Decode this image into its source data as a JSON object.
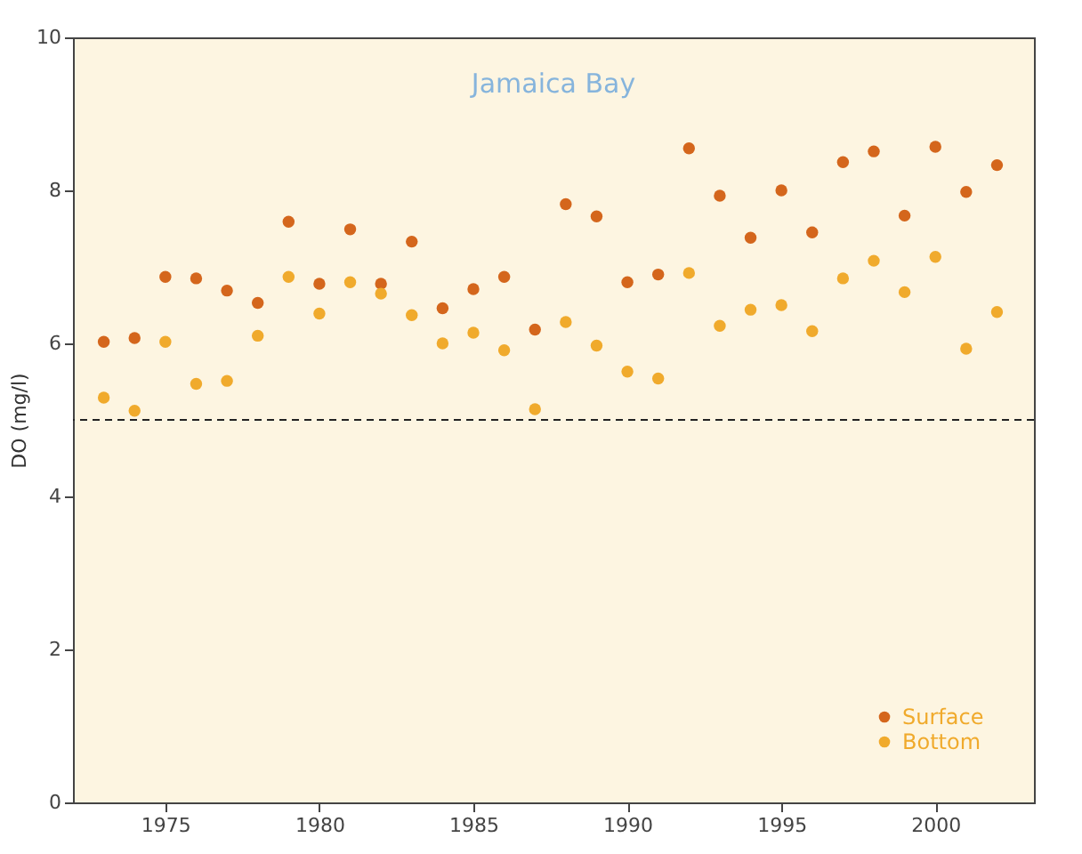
{
  "chart_data": {
    "type": "scatter",
    "title": "Jamaica Bay",
    "ylabel": "DO (mg/l)",
    "x": [
      1973,
      1974,
      1975,
      1976,
      1977,
      1978,
      1979,
      1980,
      1981,
      1982,
      1983,
      1984,
      1985,
      1986,
      1987,
      1988,
      1989,
      1990,
      1991,
      1992,
      1993,
      1994,
      1995,
      1996,
      1997,
      1998,
      1999,
      2000,
      2001,
      2002
    ],
    "series": [
      {
        "name": "Surface",
        "color": "#d4661c",
        "values": [
          6.02,
          6.07,
          6.87,
          6.85,
          6.69,
          6.53,
          7.59,
          6.78,
          7.49,
          6.78,
          7.33,
          6.46,
          6.71,
          6.87,
          6.18,
          7.82,
          7.66,
          6.8,
          6.9,
          8.55,
          7.93,
          7.38,
          8.0,
          7.45,
          8.37,
          8.51,
          7.67,
          8.57,
          7.98,
          8.33
        ]
      },
      {
        "name": "Bottom",
        "color": "#f0aa2c",
        "values": [
          5.29,
          5.12,
          6.02,
          5.47,
          5.51,
          6.1,
          6.87,
          6.39,
          6.8,
          6.65,
          6.37,
          6.0,
          6.14,
          5.91,
          5.14,
          6.28,
          5.97,
          5.63,
          5.54,
          6.92,
          6.23,
          6.44,
          6.5,
          6.16,
          6.85,
          7.08,
          6.67,
          7.13,
          5.93,
          6.41
        ]
      }
    ],
    "xlim": [
      1972,
      2003.2
    ],
    "xticks": [
      1975,
      1980,
      1985,
      1990,
      1995,
      2000
    ],
    "ylim": [
      0,
      10
    ],
    "yticks": [
      0,
      2,
      4,
      6,
      8,
      10
    ],
    "ref_lines": [
      {
        "axis": "y",
        "value": 5,
        "line_style": "dashed",
        "color": "#222222"
      }
    ],
    "grid": false,
    "legend": "bottom right",
    "marker": "circle"
  }
}
